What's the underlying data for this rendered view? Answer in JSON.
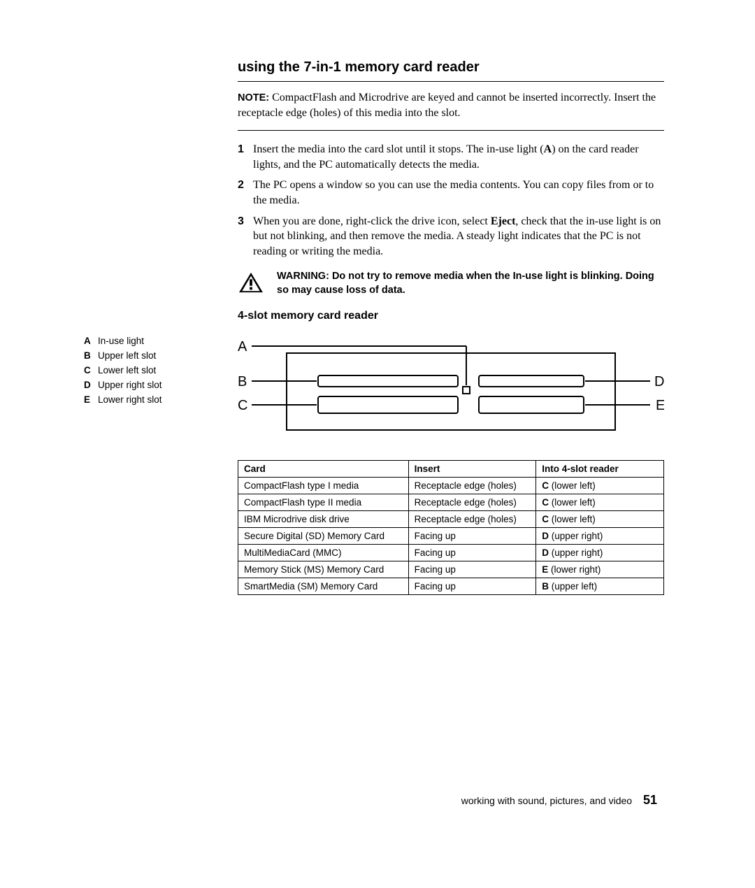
{
  "title": "using the 7-in-1 memory card reader",
  "note_label": "NOTE:",
  "note_text": "CompactFlash and Microdrive are keyed and cannot be inserted incorrectly. Insert the receptacle edge (holes) of this media into the slot.",
  "steps": [
    {
      "num": "1",
      "pre": "Insert the media into the card slot until it stops. The in-use light (",
      "bold": "A",
      "post": ") on the card reader lights, and the PC automatically detects the media."
    },
    {
      "num": "2",
      "text": "The PC opens a window so you can use the media contents. You can copy files from or to the media."
    },
    {
      "num": "3",
      "pre": "When you are done, right-click the drive icon, select ",
      "bold": "Eject",
      "post": ", check that the in-use light is on but not blinking, and then remove the media. A steady light indicates that the PC is not reading or writing the media."
    }
  ],
  "warning_label": "WARNING:",
  "warning_text": "Do not try to remove media when the In-use light is blinking. Doing so may cause loss of data.",
  "subtitle": "4-slot memory card reader",
  "legend": [
    {
      "key": "A",
      "val": "In-use light"
    },
    {
      "key": "B",
      "val": "Upper left slot"
    },
    {
      "key": "C",
      "val": "Lower left slot"
    },
    {
      "key": "D",
      "val": "Upper right slot"
    },
    {
      "key": "E",
      "val": "Lower right slot"
    }
  ],
  "diagram": {
    "labels": {
      "A": "A",
      "B": "B",
      "C": "C",
      "D": "D",
      "E": "E"
    },
    "stroke": "#000000",
    "stroke_width": 2
  },
  "table": {
    "columns": [
      "Card",
      "Insert",
      "Into 4-slot reader"
    ],
    "col_widths": [
      "40%",
      "30%",
      "30%"
    ],
    "rows": [
      [
        "CompactFlash type I media",
        "Receptacle edge (holes)",
        {
          "b": "C",
          "t": " (lower left)"
        }
      ],
      [
        "CompactFlash type II media",
        "Receptacle edge (holes)",
        {
          "b": "C",
          "t": " (lower left)"
        }
      ],
      [
        "IBM Microdrive disk drive",
        "Receptacle edge (holes)",
        {
          "b": "C",
          "t": " (lower left)"
        }
      ],
      [
        "Secure Digital (SD) Memory Card",
        "Facing up",
        {
          "b": "D",
          "t": " (upper right)"
        }
      ],
      [
        "MultiMediaCard (MMC)",
        "Facing up",
        {
          "b": "D",
          "t": " (upper right)"
        }
      ],
      [
        "Memory Stick (MS) Memory Card",
        "Facing up",
        {
          "b": "E",
          "t": " (lower right)"
        }
      ],
      [
        "SmartMedia (SM) Memory Card",
        "Facing up",
        {
          "b": "B",
          "t": " (upper left)"
        }
      ]
    ]
  },
  "footer_text": "working with sound, pictures, and video",
  "page_number": "51"
}
